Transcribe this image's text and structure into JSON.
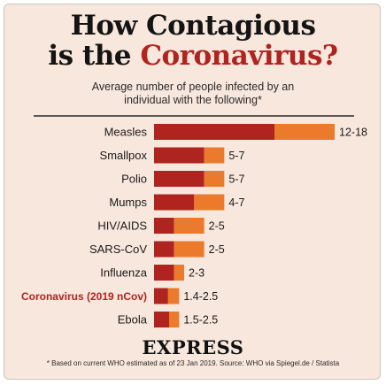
{
  "title": {
    "line1": "How Contagious",
    "line2_prefix": "is the ",
    "line2_accent": "Coronavirus?"
  },
  "subtitle_line1": "Average number of people infected by an",
  "subtitle_line2": "individual with the following*",
  "logo_text": "EXPRESS",
  "footnote": "* Based on current WHO estimated as of 23 Jan 2019. Source: WHO via Spiegel.de / Statista",
  "colors": {
    "background": "#f8e7dc",
    "low": "#b0241f",
    "high": "#ec7a2d",
    "accent_label": "#b0241f",
    "label": "#1a1a1a"
  },
  "chart_data": {
    "type": "bar",
    "orientation": "horizontal",
    "stacked": true,
    "categories": [
      "Measles",
      "Smallpox",
      "Polio",
      "Mumps",
      "HIV/AIDS",
      "SARS-CoV",
      "Influenza",
      "Coronavirus (2019 nCov)",
      "Ebola"
    ],
    "highlight_category": "Coronavirus (2019 nCov)",
    "ranges": [
      [
        12,
        18
      ],
      [
        5,
        7
      ],
      [
        5,
        7
      ],
      [
        4,
        7
      ],
      [
        2,
        5
      ],
      [
        2,
        5
      ],
      [
        2,
        3
      ],
      [
        1.4,
        2.5
      ],
      [
        1.5,
        2.5
      ]
    ],
    "data_labels": [
      "12-18",
      "5-7",
      "5-7",
      "4-7",
      "2-5",
      "2-5",
      "2-3",
      "1.4-2.5",
      "1.5-2.5"
    ],
    "xlim": [
      0,
      18
    ]
  }
}
